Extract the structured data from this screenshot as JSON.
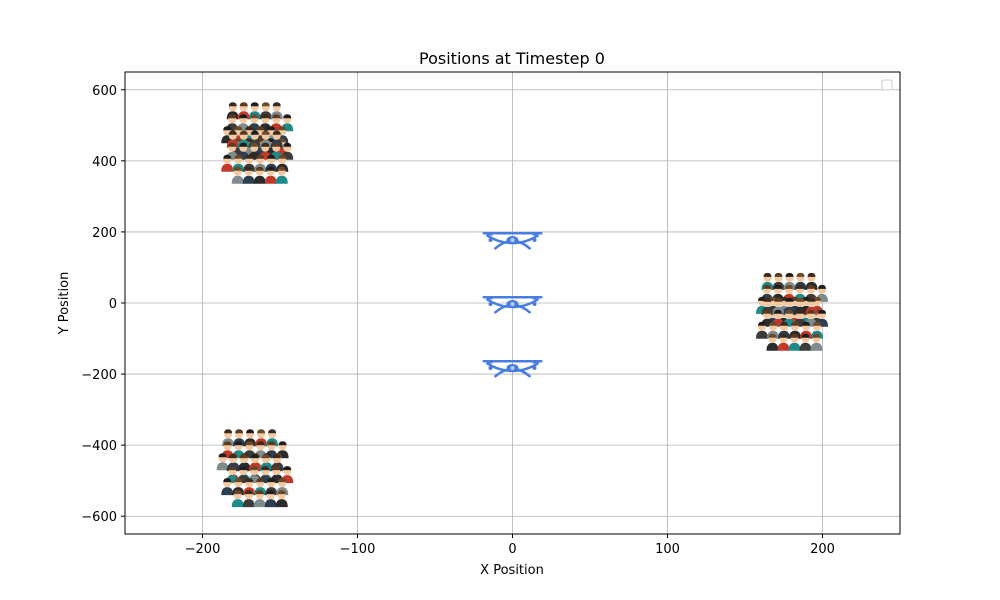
{
  "chart_data": {
    "type": "scatter",
    "title": "Positions at Timestep 0",
    "xlabel": "X Position",
    "ylabel": "Y Position",
    "xlim": [
      -250,
      250
    ],
    "ylim": [
      -650,
      650
    ],
    "xticks": [
      -200,
      -100,
      0,
      100,
      200
    ],
    "yticks": [
      -600,
      -400,
      -200,
      0,
      200,
      400,
      600
    ],
    "xtick_labels": [
      "−200",
      "−100",
      "0",
      "100",
      "200"
    ],
    "ytick_labels": [
      "−600",
      "−400",
      "−200",
      "0",
      "200",
      "400",
      "600"
    ],
    "grid": true,
    "legend": "top-right (empty)",
    "series": [
      {
        "marker": "drone-icon",
        "color": "#4a7de0",
        "points": [
          {
            "x": 0,
            "y": 180
          },
          {
            "x": 0,
            "y": 0
          },
          {
            "x": 0,
            "y": -180
          }
        ]
      },
      {
        "marker": "crowd-icon",
        "points": [
          {
            "x": -165,
            "y": 500
          },
          {
            "x": -165,
            "y": 420
          },
          {
            "x": 180,
            "y": 20
          },
          {
            "x": 180,
            "y": -50
          },
          {
            "x": -168,
            "y": -420
          },
          {
            "x": -165,
            "y": -490
          }
        ]
      }
    ]
  }
}
